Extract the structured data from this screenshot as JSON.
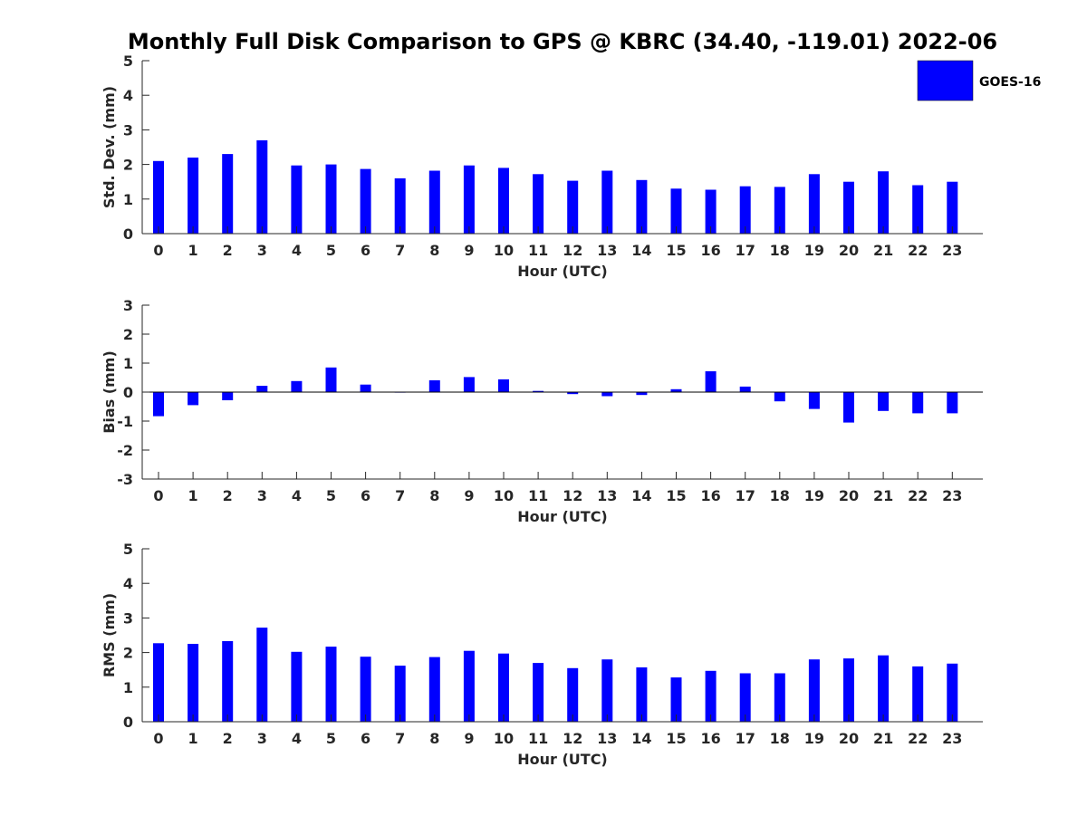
{
  "title": "Monthly Full Disk Comparison to GPS @ KBRC (34.40, -119.01) 2022-06",
  "legend": {
    "label": "GOES-16",
    "color": "#0000ff"
  },
  "chart_data": [
    {
      "type": "bar",
      "name": "std-dev",
      "ylabel": "Std. Dev. (mm)",
      "xlabel": "Hour (UTC)",
      "ylim": [
        0,
        5
      ],
      "yticks": [
        0,
        1,
        2,
        3,
        4,
        5
      ],
      "categories": [
        "0",
        "1",
        "2",
        "3",
        "4",
        "5",
        "6",
        "7",
        "8",
        "9",
        "10",
        "11",
        "12",
        "13",
        "14",
        "15",
        "16",
        "17",
        "18",
        "19",
        "20",
        "21",
        "22",
        "23"
      ],
      "series": [
        {
          "name": "GOES-16",
          "color": "#0000ff",
          "values": [
            2.1,
            2.2,
            2.3,
            2.7,
            1.97,
            2.0,
            1.87,
            1.6,
            1.82,
            1.97,
            1.9,
            1.72,
            1.53,
            1.82,
            1.55,
            1.3,
            1.27,
            1.37,
            1.35,
            1.72,
            1.5,
            1.8,
            1.4,
            1.5
          ]
        }
      ]
    },
    {
      "type": "bar",
      "name": "bias",
      "ylabel": "Bias (mm)",
      "xlabel": "Hour (UTC)",
      "ylim": [
        -3,
        3
      ],
      "yticks": [
        -3,
        -2,
        -1,
        0,
        1,
        2,
        3
      ],
      "categories": [
        "0",
        "1",
        "2",
        "3",
        "4",
        "5",
        "6",
        "7",
        "8",
        "9",
        "10",
        "11",
        "12",
        "13",
        "14",
        "15",
        "16",
        "17",
        "18",
        "19",
        "20",
        "21",
        "22",
        "23"
      ],
      "series": [
        {
          "name": "GOES-16",
          "color": "#0000ff",
          "values": [
            -0.83,
            -0.45,
            -0.28,
            0.22,
            0.38,
            0.85,
            0.26,
            -0.02,
            0.41,
            0.52,
            0.44,
            0.04,
            -0.07,
            -0.14,
            -0.1,
            0.1,
            0.72,
            0.19,
            -0.32,
            -0.58,
            -1.05,
            -0.65,
            -0.73,
            -0.73
          ]
        }
      ]
    },
    {
      "type": "bar",
      "name": "rms",
      "ylabel": "RMS (mm)",
      "xlabel": "Hour (UTC)",
      "ylim": [
        0,
        5
      ],
      "yticks": [
        0,
        1,
        2,
        3,
        4,
        5
      ],
      "categories": [
        "0",
        "1",
        "2",
        "3",
        "4",
        "5",
        "6",
        "7",
        "8",
        "9",
        "10",
        "11",
        "12",
        "13",
        "14",
        "15",
        "16",
        "17",
        "18",
        "19",
        "20",
        "21",
        "22",
        "23"
      ],
      "series": [
        {
          "name": "GOES-16",
          "color": "#0000ff",
          "values": [
            2.27,
            2.25,
            2.33,
            2.72,
            2.02,
            2.17,
            1.88,
            1.62,
            1.87,
            2.05,
            1.97,
            1.7,
            1.55,
            1.8,
            1.57,
            1.28,
            1.47,
            1.4,
            1.4,
            1.8,
            1.83,
            1.92,
            1.6,
            1.68
          ]
        }
      ]
    }
  ]
}
